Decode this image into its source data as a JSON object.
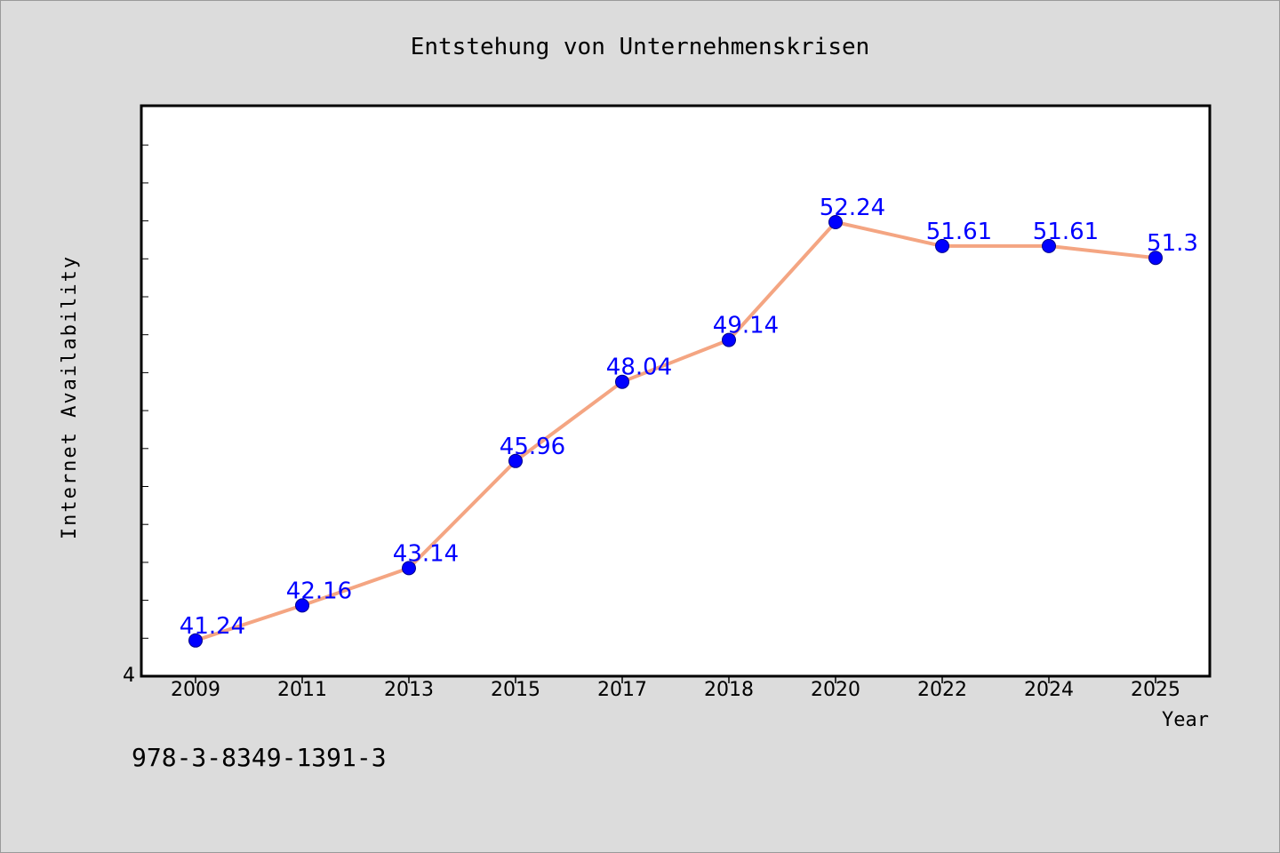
{
  "chart_data": {
    "type": "line",
    "title": "Entstehung von Unternehmenskrisen",
    "xlabel": "Year",
    "ylabel": "Internet Availability",
    "categories": [
      "2009",
      "2011",
      "2013",
      "2015",
      "2017",
      "2018",
      "2020",
      "2022",
      "2024",
      "2025"
    ],
    "series": [
      {
        "values": [
          41.24,
          42.16,
          43.14,
          45.96,
          48.04,
          49.14,
          52.24,
          51.61,
          51.61,
          51.3
        ],
        "labels": [
          "41.24",
          "42.16",
          "43.14",
          "45.96",
          "48.04",
          "49.14",
          "52.24",
          "51.61",
          "51.61",
          "51.3"
        ]
      }
    ],
    "ylim": [
      40.3,
      55.3
    ],
    "y_tick_label": "4",
    "grid": false,
    "line_color": "#f4a582",
    "marker_color": "#0000ff",
    "label_color": "#0000ff",
    "background": "#dcdcdc",
    "plot_background": "#ffffff"
  },
  "footer": {
    "isbn": "978-3-8349-1391-3"
  }
}
